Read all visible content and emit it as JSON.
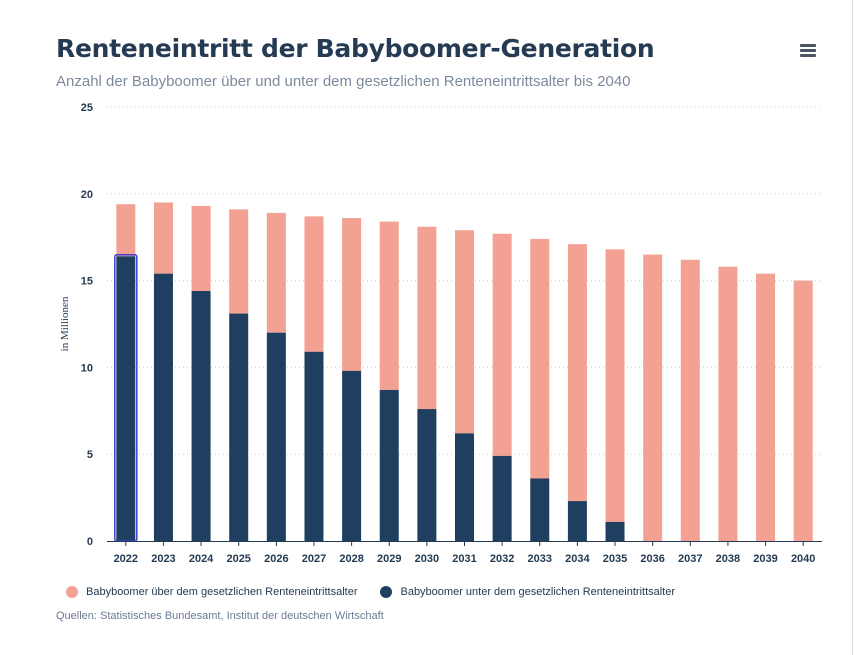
{
  "header": {
    "title": "Renteneintritt der Babyboomer-Generation",
    "subtitle": "Anzahl der Babyboomer über und unter dem gesetzlichen Renteneintrittsalter bis 2040",
    "menu_icon": "hamburger-menu-icon"
  },
  "colors": {
    "above": "#f2a193",
    "below": "#1e3f5f",
    "highlight": "#3d3fd6",
    "grid": "#c9ced6"
  },
  "chart_data": {
    "type": "bar",
    "stacked": true,
    "title": "Renteneintritt der Babyboomer-Generation",
    "ylabel": "in Millionen",
    "xlabel": "",
    "ylim": [
      0,
      25
    ],
    "yticks": [
      "0",
      "5",
      "10",
      "15",
      "20",
      "25"
    ],
    "grid": true,
    "legend_position": "bottom-left",
    "categories": [
      "2022",
      "2023",
      "2024",
      "2025",
      "2026",
      "2027",
      "2028",
      "2029",
      "2030",
      "2031",
      "2032",
      "2033",
      "2034",
      "2035",
      "2036",
      "2037",
      "2038",
      "2039",
      "2040"
    ],
    "series": [
      {
        "name": "Babyboomer unter dem gesetzlichen Renteneintrittsalter",
        "values": [
          16.4,
          15.4,
          14.4,
          13.1,
          12.0,
          10.9,
          9.8,
          8.7,
          7.6,
          6.2,
          4.9,
          3.6,
          2.3,
          1.1,
          0,
          0,
          0,
          0,
          0
        ]
      },
      {
        "name": "Babyboomer über dem gesetzlichen Renteneintrittsalter",
        "values": [
          3.0,
          4.1,
          4.9,
          6.0,
          6.9,
          7.8,
          8.8,
          9.7,
          10.5,
          11.7,
          12.8,
          13.8,
          14.8,
          15.7,
          16.5,
          16.2,
          15.8,
          15.4,
          15.0
        ]
      }
    ]
  },
  "legend": {
    "above_label": "Babyboomer über dem gesetzlichen Renteneintrittsalter",
    "below_label": "Babyboomer unter dem gesetzlichen Renteneintrittsalter"
  },
  "footer": {
    "source": "Quellen: Statistisches Bundesamt, Institut der deutschen Wirtschaft"
  }
}
